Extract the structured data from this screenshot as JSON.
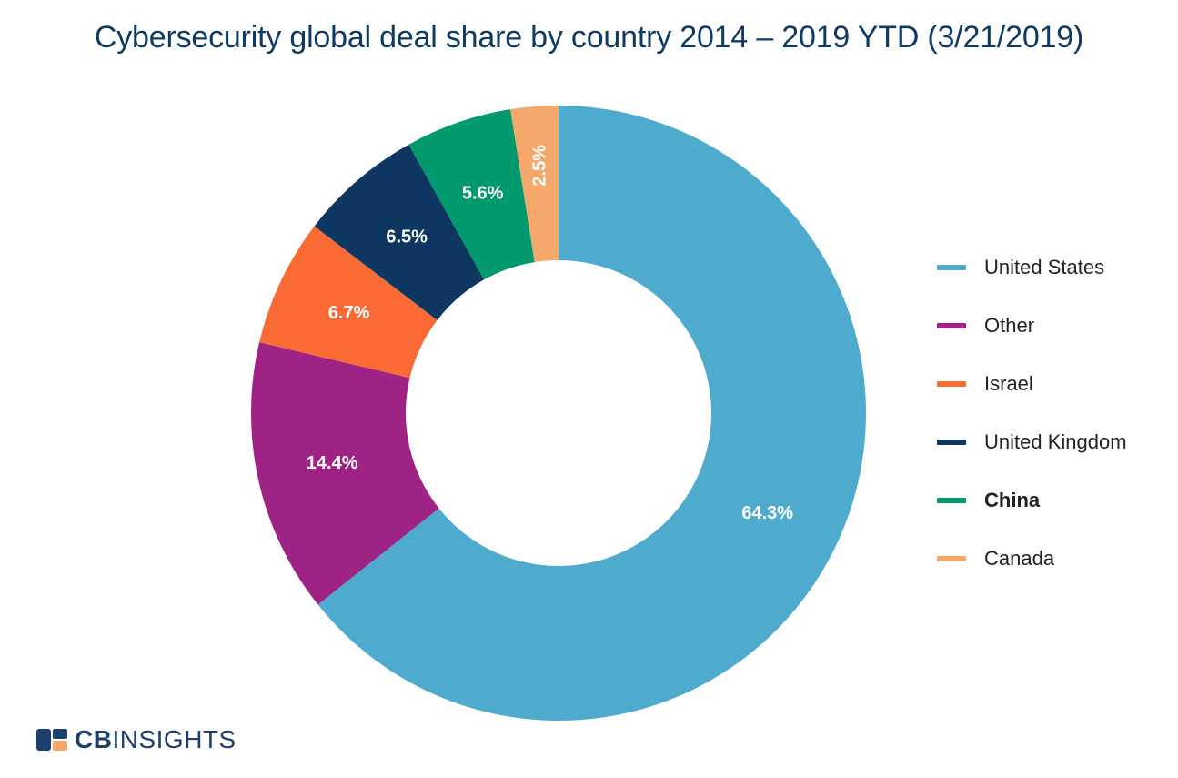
{
  "chart_data": {
    "type": "pie",
    "title": "Cybersecurity global deal share by country 2014 – 2019 YTD (3/21/2019)",
    "categories": [
      "United States",
      "Other",
      "Israel",
      "United Kingdom",
      "China",
      "Canada"
    ],
    "values": [
      64.3,
      14.4,
      6.7,
      6.5,
      5.6,
      2.5
    ],
    "data_labels": [
      "64.3%",
      "14.4%",
      "6.7%",
      "6.5%",
      "5.6%",
      "2.5%"
    ],
    "colors": [
      "#4fabcd",
      "#9e2385",
      "#f96a35",
      "#0d3661",
      "#009a6e",
      "#f5a86c"
    ],
    "hole": true,
    "legend_position": "right"
  },
  "legend": {
    "items": [
      {
        "label": "United States",
        "color": "#4fabcd",
        "bold": false
      },
      {
        "label": "Other",
        "color": "#9e2385",
        "bold": false
      },
      {
        "label": "Israel",
        "color": "#f96a35",
        "bold": false
      },
      {
        "label": "United Kingdom",
        "color": "#0d3661",
        "bold": false
      },
      {
        "label": "China",
        "color": "#009a6e",
        "bold": true
      },
      {
        "label": "Canada",
        "color": "#f5a86c",
        "bold": false
      }
    ]
  },
  "brand": {
    "cb": "CB",
    "insights": "INSIGHTS",
    "mark_colors": [
      "#1d3f6b",
      "#f5a86c"
    ]
  }
}
